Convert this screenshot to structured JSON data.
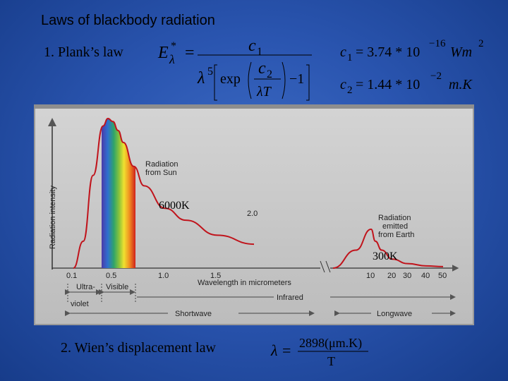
{
  "slide": {
    "title": "Laws of blackbody radiation",
    "law1_label": "1. Plank’s law",
    "law2_label": "2. Wien’s displacement law"
  },
  "planck": {
    "lhs": "E",
    "lhs_sub": "λ",
    "lhs_sup": "*",
    "equals": "=",
    "numerator": "c",
    "numerator_sub": "1",
    "denom_lambda": "λ",
    "denom_pow": "5",
    "exp_label": "exp",
    "inner_num": "c",
    "inner_num_sub": "2",
    "inner_den": "λT",
    "minus_one": "−1"
  },
  "constants": {
    "c1_name": "c",
    "c1_sub": "1",
    "c1_value": "= 3.74 * 10",
    "c1_exp": "−16",
    "c1_unit": "Wm",
    "c1_unit_pow": "2",
    "c2_name": "c",
    "c2_sub": "2",
    "c2_value": "= 1.44 * 10",
    "c2_exp": "−2",
    "c2_unit": "m.K"
  },
  "wien": {
    "lhs": "λ",
    "equals": "=",
    "numerator": "2898(μm.K)",
    "denominator": "T"
  },
  "chart_data": {
    "type": "line",
    "ylabel": "Radiation intensity",
    "xlabel": "Wavelength in micrometers",
    "x_ticks_left": [
      "0.1",
      "0.5",
      "1.0",
      "1.5",
      "2.0"
    ],
    "x_ticks_right": [
      "10",
      "20",
      "30",
      "40",
      "50"
    ],
    "series": [
      {
        "name": "Radiation from Sun",
        "temp_label": "6000K",
        "x": [
          0.1,
          0.2,
          0.3,
          0.4,
          0.45,
          0.5,
          0.55,
          0.6,
          0.7,
          0.8,
          1.0,
          1.2,
          1.5,
          2.0
        ],
        "y": [
          0.0,
          0.18,
          0.62,
          0.95,
          1.0,
          0.98,
          0.92,
          0.84,
          0.68,
          0.55,
          0.4,
          0.32,
          0.22,
          0.16
        ]
      },
      {
        "name": "Radiation emitted from Earth",
        "temp_label": "300K",
        "x": [
          5,
          8,
          10,
          12,
          15,
          20,
          30,
          40,
          50
        ],
        "y": [
          0.0,
          0.12,
          0.26,
          0.18,
          0.12,
          0.06,
          0.03,
          0.015,
          0.01
        ]
      }
    ],
    "annotations": {
      "sun_line1": "Radiation",
      "sun_line2": "from Sun",
      "sun_temp": "6000K",
      "earth_line1": "Radiation",
      "earth_line2": "emitted",
      "earth_line3": "from Earth",
      "earth_temp": "300K"
    },
    "bands": {
      "ultraviolet_1": "Ultra-",
      "ultraviolet_2": "violet",
      "visible": "Visible",
      "infrared": "Infrared",
      "shortwave": "Shortwave",
      "longwave": "Longwave"
    },
    "colors": {
      "panel": "#c8c8c8",
      "panel_frame": "#9a9a9a",
      "curve": "#c0141c",
      "arrow": "#6a6a6a"
    }
  }
}
